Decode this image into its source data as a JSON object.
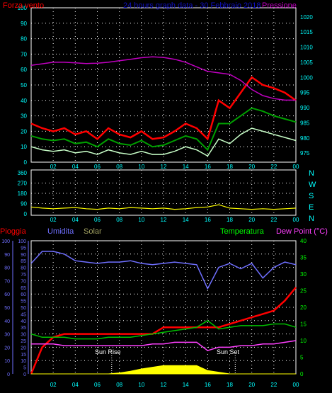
{
  "colors": {
    "background": "#000000",
    "frame": "#ffffff",
    "grid": "#ffffff",
    "wind_gust": "#ff0000",
    "wind_avg": "#00a000",
    "wind_min": "#c8ffc8",
    "pressure": "#c000c0",
    "direction": "#ffff00",
    "rain": "#ff0000",
    "humidity": "#6f6fff",
    "solar": "#ffff00",
    "temperature": "#00c000",
    "dew_point": "#ff40ff",
    "top_title": "#1010c0",
    "rain_axis": "#6f6fff",
    "humidity_axis": "#6f6fff",
    "temp_axis": "#00ff00",
    "tick_label": "#00ffff"
  },
  "chart_data": [
    {
      "type": "line",
      "title": "24 hours graph data - 30 Febbraio 2018",
      "left_axis_label": "Forza vento",
      "right_axis_label": "Pressione",
      "x_ticks": [
        "02",
        "04",
        "06",
        "08",
        "10",
        "12",
        "14",
        "16",
        "18",
        "20",
        "22",
        "00"
      ],
      "y_left_ticks": [
        "0",
        "10",
        "20",
        "30",
        "40",
        "50",
        "60",
        "70",
        "80",
        "90",
        "100"
      ],
      "y_left_range": [
        0,
        100
      ],
      "y_right_ticks": [
        "975",
        "980",
        "985",
        "990",
        "995",
        "1000",
        "1005",
        "1010",
        "1015",
        "1020"
      ],
      "y_right_range": [
        972,
        1023
      ],
      "grid": true,
      "x_hours": [
        0,
        1,
        2,
        3,
        4,
        5,
        6,
        7,
        8,
        9,
        10,
        11,
        12,
        13,
        14,
        15,
        16,
        17,
        18,
        19,
        20,
        21,
        22,
        23,
        24
      ],
      "series": [
        {
          "name": "wind_gust",
          "axis": "left",
          "values": [
            25,
            22,
            20,
            22,
            18,
            20,
            15,
            22,
            18,
            16,
            20,
            15,
            16,
            20,
            25,
            22,
            15,
            40,
            35,
            45,
            55,
            50,
            48,
            45,
            40
          ]
        },
        {
          "name": "wind_avg",
          "axis": "left",
          "values": [
            17,
            15,
            14,
            15,
            12,
            13,
            10,
            15,
            12,
            11,
            14,
            10,
            11,
            14,
            17,
            15,
            8,
            25,
            25,
            30,
            35,
            33,
            30,
            28,
            26
          ]
        },
        {
          "name": "wind_min",
          "axis": "left",
          "values": [
            10,
            8,
            7,
            8,
            6,
            7,
            5,
            8,
            6,
            5,
            7,
            5,
            5,
            7,
            10,
            8,
            4,
            15,
            12,
            18,
            22,
            20,
            18,
            16,
            14
          ]
        },
        {
          "name": "pressure",
          "axis": "right",
          "values": [
            1004,
            1004.5,
            1005,
            1005,
            1004.8,
            1004.6,
            1004.7,
            1005,
            1005.5,
            1006,
            1006.5,
            1006.8,
            1006.6,
            1006,
            1005,
            1003.5,
            1002,
            1001.5,
            1001,
            999,
            996,
            994,
            993,
            992.5,
            992.5
          ]
        }
      ]
    },
    {
      "type": "line",
      "title": "",
      "right_labels": [
        "N",
        "W",
        "S",
        "E",
        "N"
      ],
      "x_ticks": [
        "02",
        "04",
        "06",
        "08",
        "10",
        "12",
        "14",
        "16",
        "18",
        "20",
        "22",
        "00"
      ],
      "y_ticks": [
        "360",
        "270",
        "180",
        "90",
        "0"
      ],
      "y_range": [
        0,
        360
      ],
      "grid": true,
      "x_hours": [
        0,
        1,
        2,
        3,
        4,
        5,
        6,
        7,
        8,
        9,
        10,
        11,
        12,
        13,
        14,
        15,
        16,
        17,
        18,
        19,
        20,
        21,
        22,
        23,
        24
      ],
      "series": [
        {
          "name": "wind_direction",
          "values": [
            60,
            50,
            45,
            50,
            55,
            45,
            40,
            50,
            45,
            55,
            50,
            45,
            50,
            40,
            45,
            55,
            60,
            80,
            50,
            45,
            40,
            45,
            40,
            45,
            50
          ]
        }
      ]
    },
    {
      "type": "line",
      "title": "",
      "labels": {
        "rain": "Pioggia",
        "humidity": "Umidita",
        "solar": "Solar",
        "temperature": "Temperatura",
        "dew_point": "Dew Point (°C)"
      },
      "annotations": [
        "Sun Rise",
        "Sun Set"
      ],
      "x_ticks": [
        "02",
        "04",
        "06",
        "08",
        "10",
        "12",
        "14",
        "16",
        "18",
        "20",
        "22",
        "00"
      ],
      "rain_ticks": [
        "0",
        "10",
        "20",
        "30",
        "40",
        "50",
        "60",
        "70",
        "80",
        "90",
        "100"
      ],
      "humidity_ticks": [
        "0",
        "5",
        "10",
        "15",
        "20",
        "25",
        "30",
        "35",
        "40",
        "45",
        "50",
        "55",
        "60",
        "65",
        "70",
        "75",
        "80",
        "85",
        "90",
        "95",
        "100"
      ],
      "temp_ticks": [
        "0",
        "5",
        "10",
        "15",
        "20",
        "25",
        "30",
        "35",
        "40"
      ],
      "temp_range": [
        0,
        40
      ],
      "grid": true,
      "x_hours": [
        0,
        1,
        2,
        3,
        4,
        5,
        6,
        7,
        8,
        9,
        10,
        11,
        12,
        13,
        14,
        15,
        16,
        17,
        18,
        19,
        20,
        21,
        22,
        23,
        24
      ],
      "series": [
        {
          "name": "rain",
          "scale": "temp",
          "values": [
            0,
            8,
            11,
            12,
            12,
            12,
            12,
            12,
            12,
            12,
            12,
            12,
            14,
            14,
            14,
            14,
            14,
            14,
            15,
            16,
            17,
            18,
            19,
            22,
            26
          ]
        },
        {
          "name": "humidity",
          "scale": "humidity",
          "values": [
            83,
            92,
            92,
            90,
            85,
            84,
            83,
            84,
            84,
            85,
            83,
            82,
            83,
            84,
            83,
            82,
            64,
            80,
            83,
            79,
            83,
            72,
            80,
            84,
            82
          ]
        },
        {
          "name": "temperature",
          "scale": "temp",
          "values": [
            12,
            11,
            11,
            11,
            10.5,
            10.5,
            10.5,
            11,
            11,
            11,
            11.5,
            12,
            12.5,
            13,
            13.5,
            14,
            16,
            13.5,
            14,
            14.5,
            14.5,
            14.5,
            15,
            15,
            14
          ]
        },
        {
          "name": "dew_point",
          "scale": "temp",
          "values": [
            9,
            9,
            9,
            8.5,
            8.5,
            8.5,
            8.5,
            8.5,
            8.5,
            8.5,
            8.5,
            9,
            9,
            9.5,
            9.5,
            9.5,
            7,
            8,
            8,
            8.5,
            8.5,
            9,
            9,
            9.5,
            10
          ]
        },
        {
          "name": "solar",
          "scale": "temp",
          "values": [
            0,
            0,
            0,
            0,
            0,
            0,
            0,
            0,
            0.3,
            0.8,
            1.5,
            2,
            2.5,
            2.5,
            2.5,
            2.5,
            1,
            0.5,
            0,
            0,
            0,
            0,
            0,
            0,
            0
          ]
        }
      ]
    }
  ]
}
